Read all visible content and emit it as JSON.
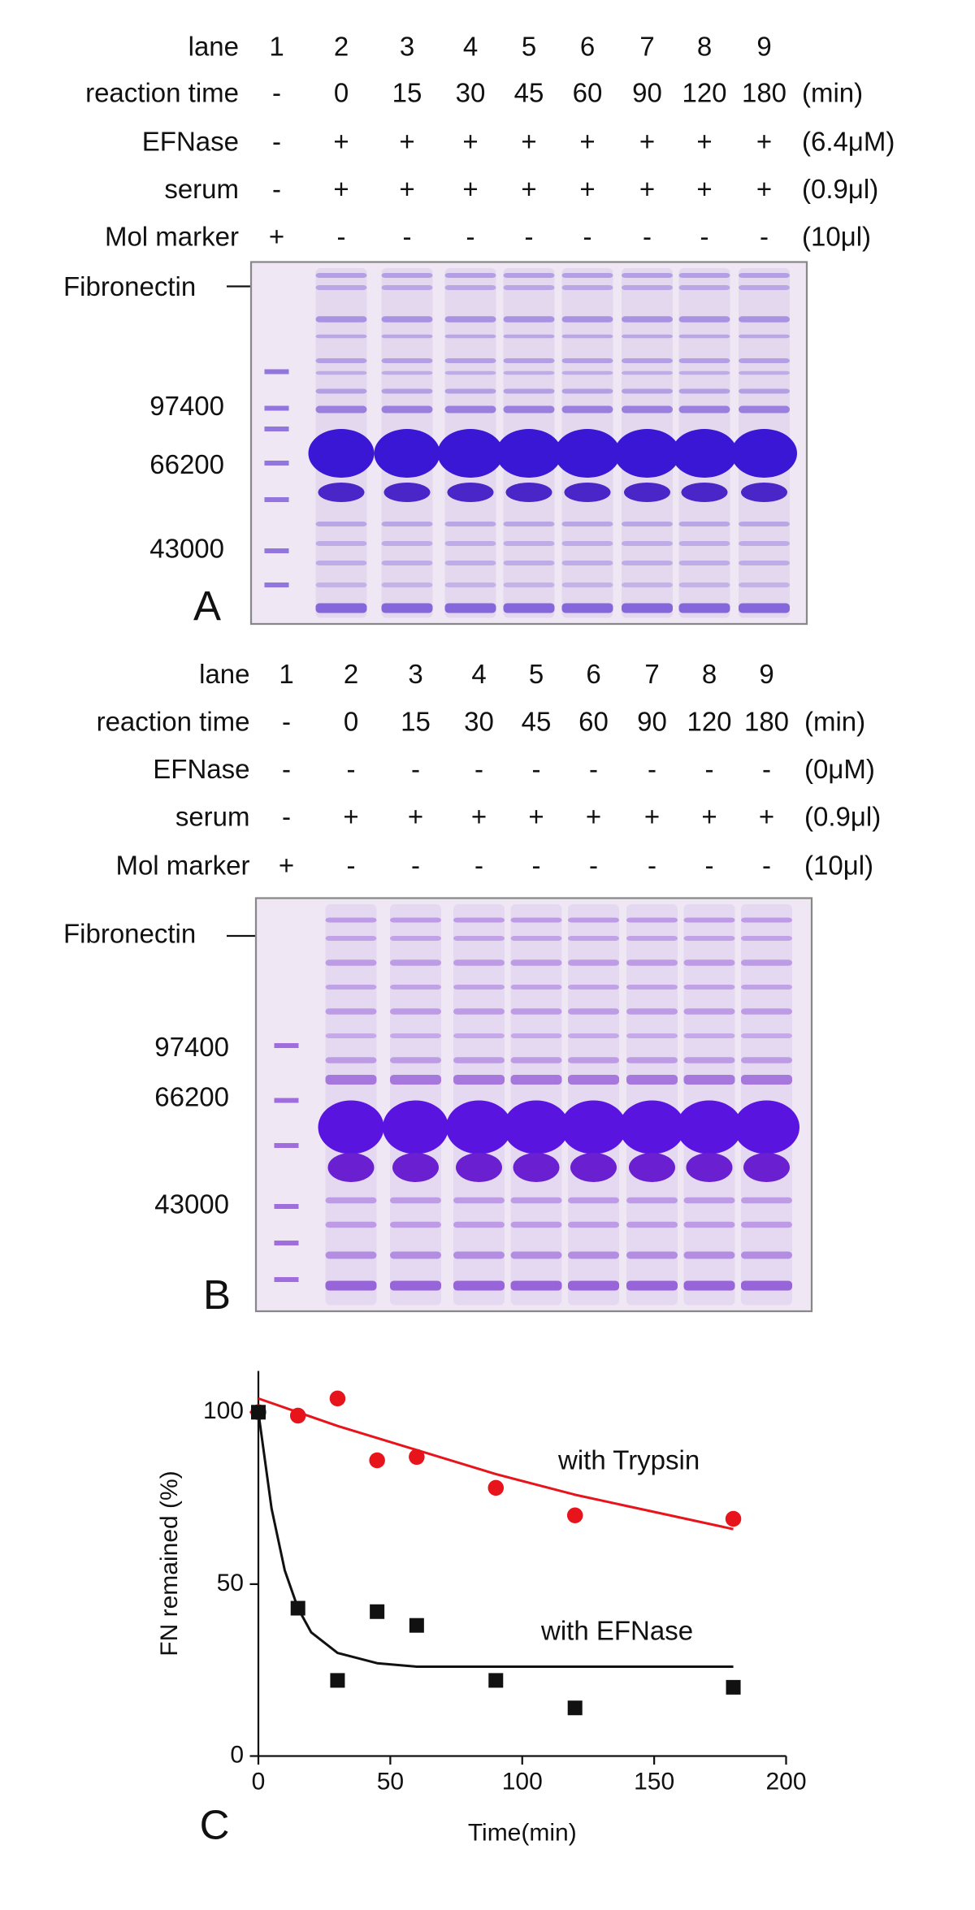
{
  "panel_a": {
    "letter": "A",
    "header": {
      "rows": [
        {
          "label": "lane",
          "cells": [
            "1",
            "2",
            "3",
            "4",
            "5",
            "6",
            "7",
            "8",
            "9"
          ]
        },
        {
          "label": "reaction time",
          "cells": [
            "-",
            "0",
            "15",
            "30",
            "45",
            "60",
            "90",
            "120",
            "180"
          ],
          "unit": "(min)"
        },
        {
          "label": "EFNase",
          "cells": [
            "-",
            "+",
            "+",
            "+",
            "+",
            "+",
            "+",
            "+",
            "+"
          ],
          "unit": "(6.4μM)"
        },
        {
          "label": "serum",
          "cells": [
            "-",
            "+",
            "+",
            "+",
            "+",
            "+",
            "+",
            "+",
            "+"
          ],
          "unit": "(0.9μl)"
        },
        {
          "label": "Mol marker",
          "cells": [
            "+",
            "-",
            "-",
            "-",
            "-",
            "-",
            "-",
            "-",
            "-"
          ],
          "unit": "(10μl)"
        }
      ]
    },
    "fibronectin": "Fibronectin",
    "markers": [
      "97400",
      "66200",
      "43000"
    ]
  },
  "panel_b": {
    "letter": "B",
    "header": {
      "rows": [
        {
          "label": "lane",
          "cells": [
            "1",
            "2",
            "3",
            "4",
            "5",
            "6",
            "7",
            "8",
            "9"
          ]
        },
        {
          "label": "reaction time",
          "cells": [
            "-",
            "0",
            "15",
            "30",
            "45",
            "60",
            "90",
            "120",
            "180"
          ],
          "unit": "(min)"
        },
        {
          "label": "EFNase",
          "cells": [
            "-",
            "-",
            "-",
            "-",
            "-",
            "-",
            "-",
            "-",
            "-"
          ],
          "unit": "(0μM)"
        },
        {
          "label": "serum",
          "cells": [
            "-",
            "+",
            "+",
            "+",
            "+",
            "+",
            "+",
            "+",
            "+"
          ],
          "unit": "(0.9μl)"
        },
        {
          "label": "Mol marker",
          "cells": [
            "+",
            "-",
            "-",
            "-",
            "-",
            "-",
            "-",
            "-",
            "-"
          ],
          "unit": "(10μl)"
        }
      ]
    },
    "fibronectin": "Fibronectin",
    "markers": [
      "97400",
      "66200",
      "43000"
    ]
  },
  "panel_c": {
    "letter": "C"
  },
  "chart_data": {
    "type": "scatter",
    "xlabel": "Time(min)",
    "ylabel": "FN remained (%)",
    "xlim": [
      0,
      200
    ],
    "xticks": [
      0,
      50,
      100,
      150,
      200
    ],
    "ylim": [
      0,
      112
    ],
    "yticks": [
      0,
      50,
      100
    ],
    "series": [
      {
        "name": "with Trypsin",
        "color": "#e8141c",
        "marker": "circle",
        "x": [
          0,
          15,
          30,
          45,
          60,
          90,
          120,
          180
        ],
        "values": [
          100,
          99,
          104,
          86,
          87,
          78,
          70,
          69
        ],
        "fit_x": [
          0,
          30,
          60,
          90,
          120,
          150,
          180
        ],
        "fit": [
          104,
          96,
          89,
          82,
          76,
          71,
          66
        ]
      },
      {
        "name": "with EFNase",
        "color": "#111111",
        "marker": "square",
        "x": [
          0,
          15,
          30,
          45,
          60,
          90,
          120,
          180
        ],
        "values": [
          100,
          43,
          22,
          42,
          38,
          22,
          14,
          20
        ],
        "fit_x": [
          0,
          5,
          10,
          15,
          20,
          30,
          45,
          60,
          90,
          180
        ],
        "fit": [
          100,
          72,
          54,
          43,
          36,
          30,
          27,
          26,
          26,
          26
        ]
      }
    ]
  }
}
